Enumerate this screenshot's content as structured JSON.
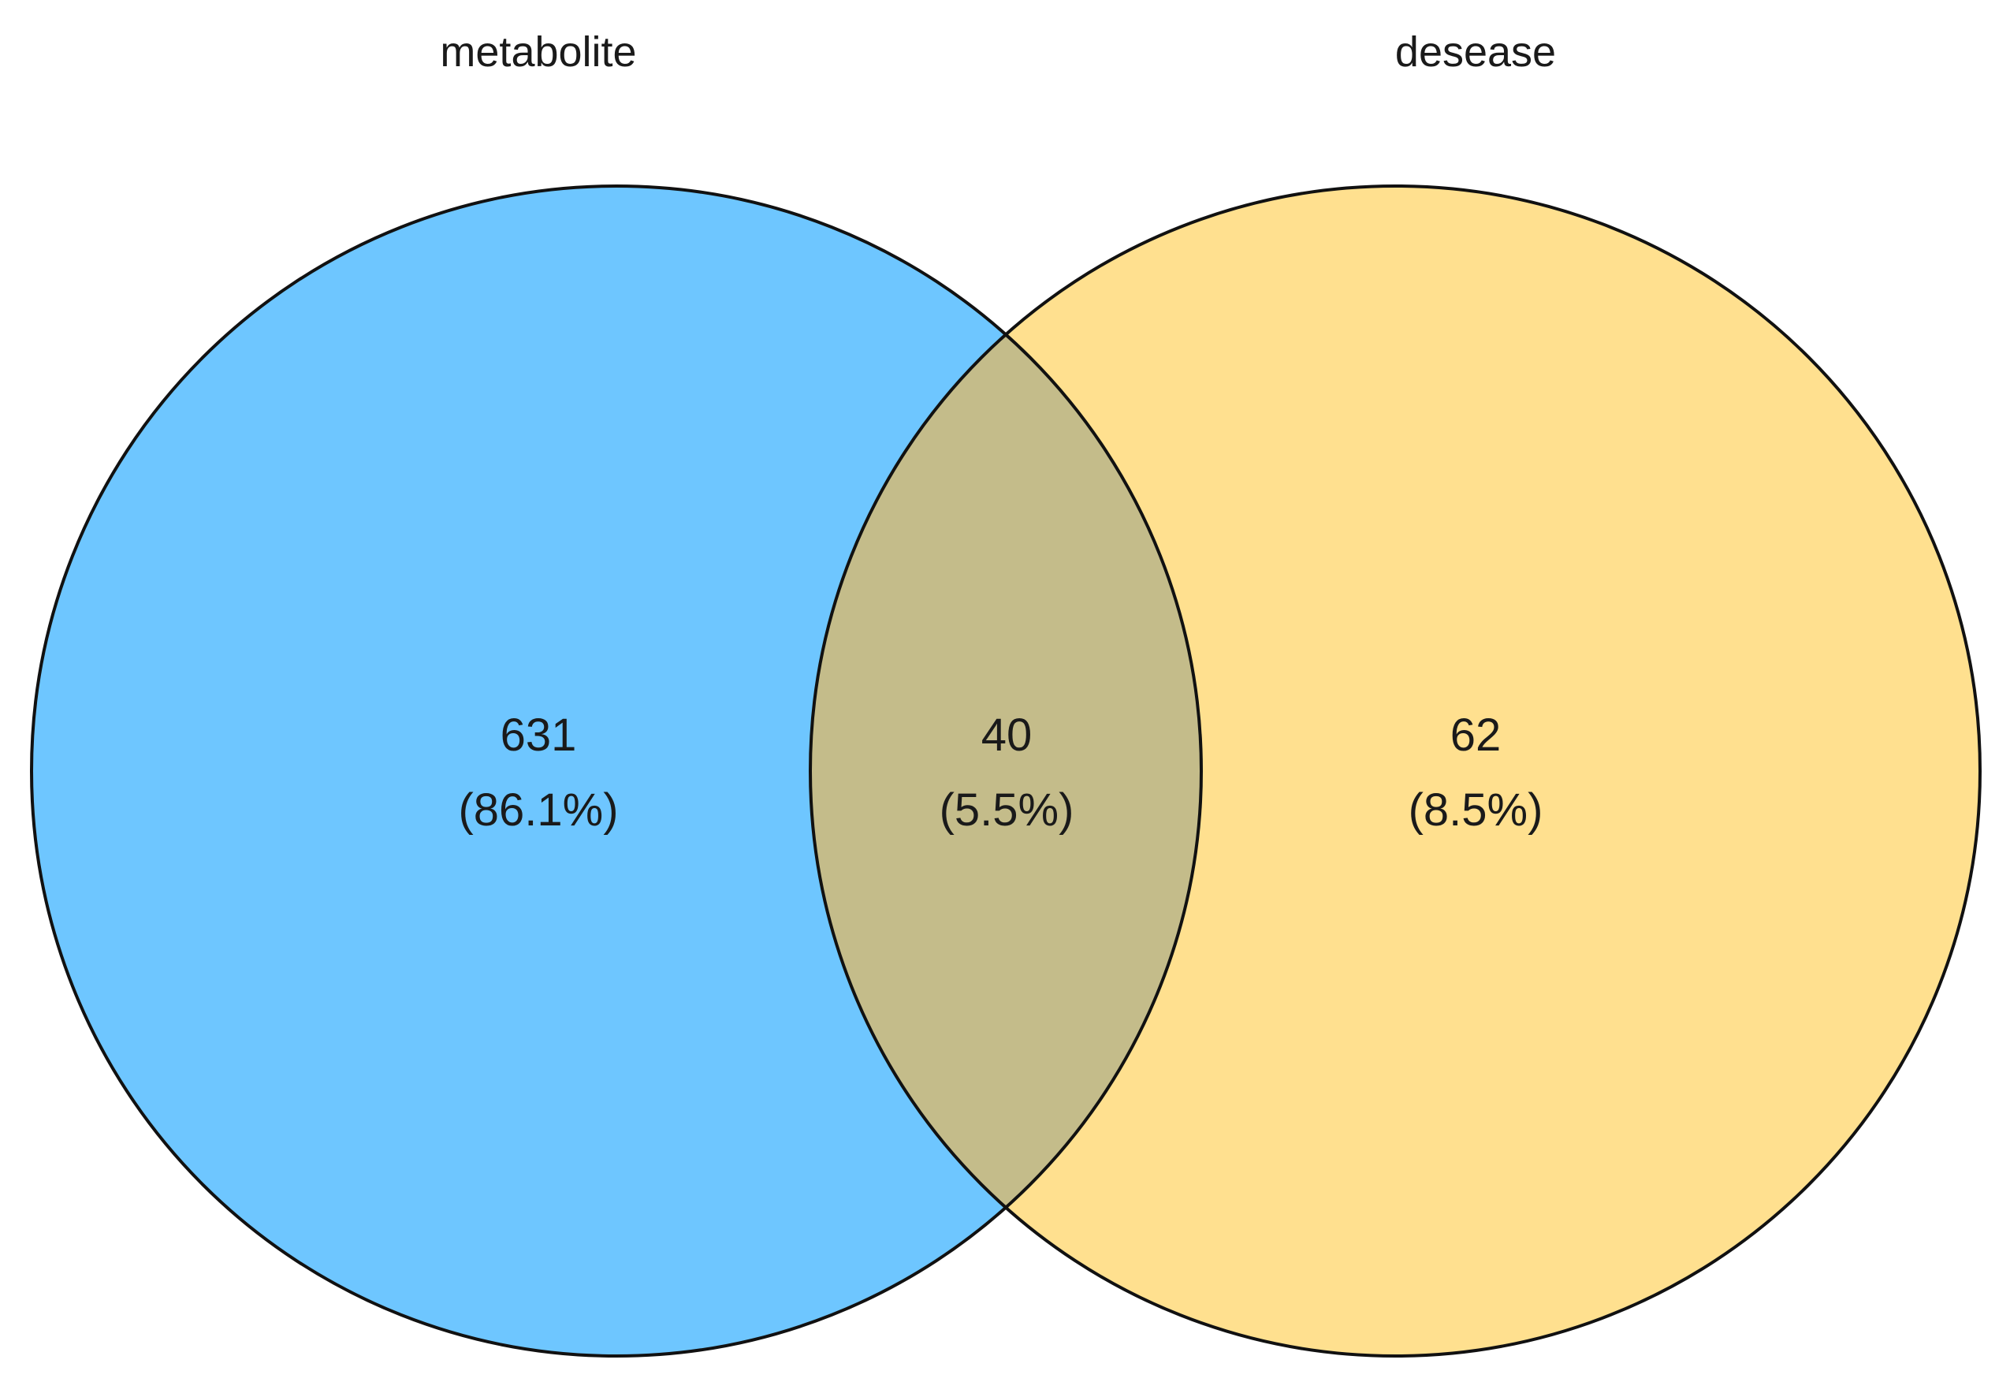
{
  "sets": [
    {
      "label": "metabolite",
      "color": "#6EC6FF"
    },
    {
      "label": "desease",
      "color": "#FFE08F"
    }
  ],
  "intersection_color": "#C4BC8A",
  "outline_color": "#111111",
  "regions": [
    {
      "id": "metabolite-only",
      "count": "631",
      "percent": "(86.1%)"
    },
    {
      "id": "intersection",
      "count": "40",
      "percent": "(5.5%)"
    },
    {
      "id": "desease-only",
      "count": "62",
      "percent": "(8.5%)"
    }
  ]
}
